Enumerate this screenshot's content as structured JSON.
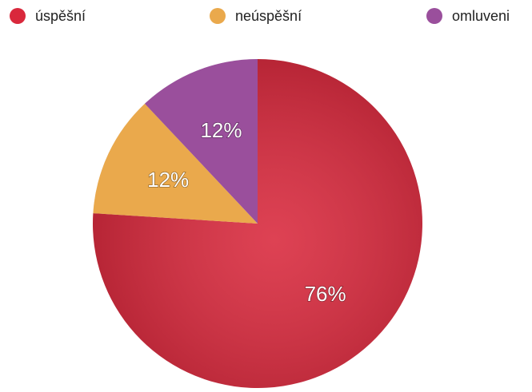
{
  "chart_data": {
    "type": "pie",
    "categories": [
      "úspěšní",
      "neúspěšní",
      "omluveni"
    ],
    "values": [
      76,
      12,
      12
    ],
    "value_labels": [
      "76%",
      "12%",
      "12%"
    ],
    "colors": [
      "#d9283c",
      "#eaa94c",
      "#9a4f9c"
    ]
  }
}
